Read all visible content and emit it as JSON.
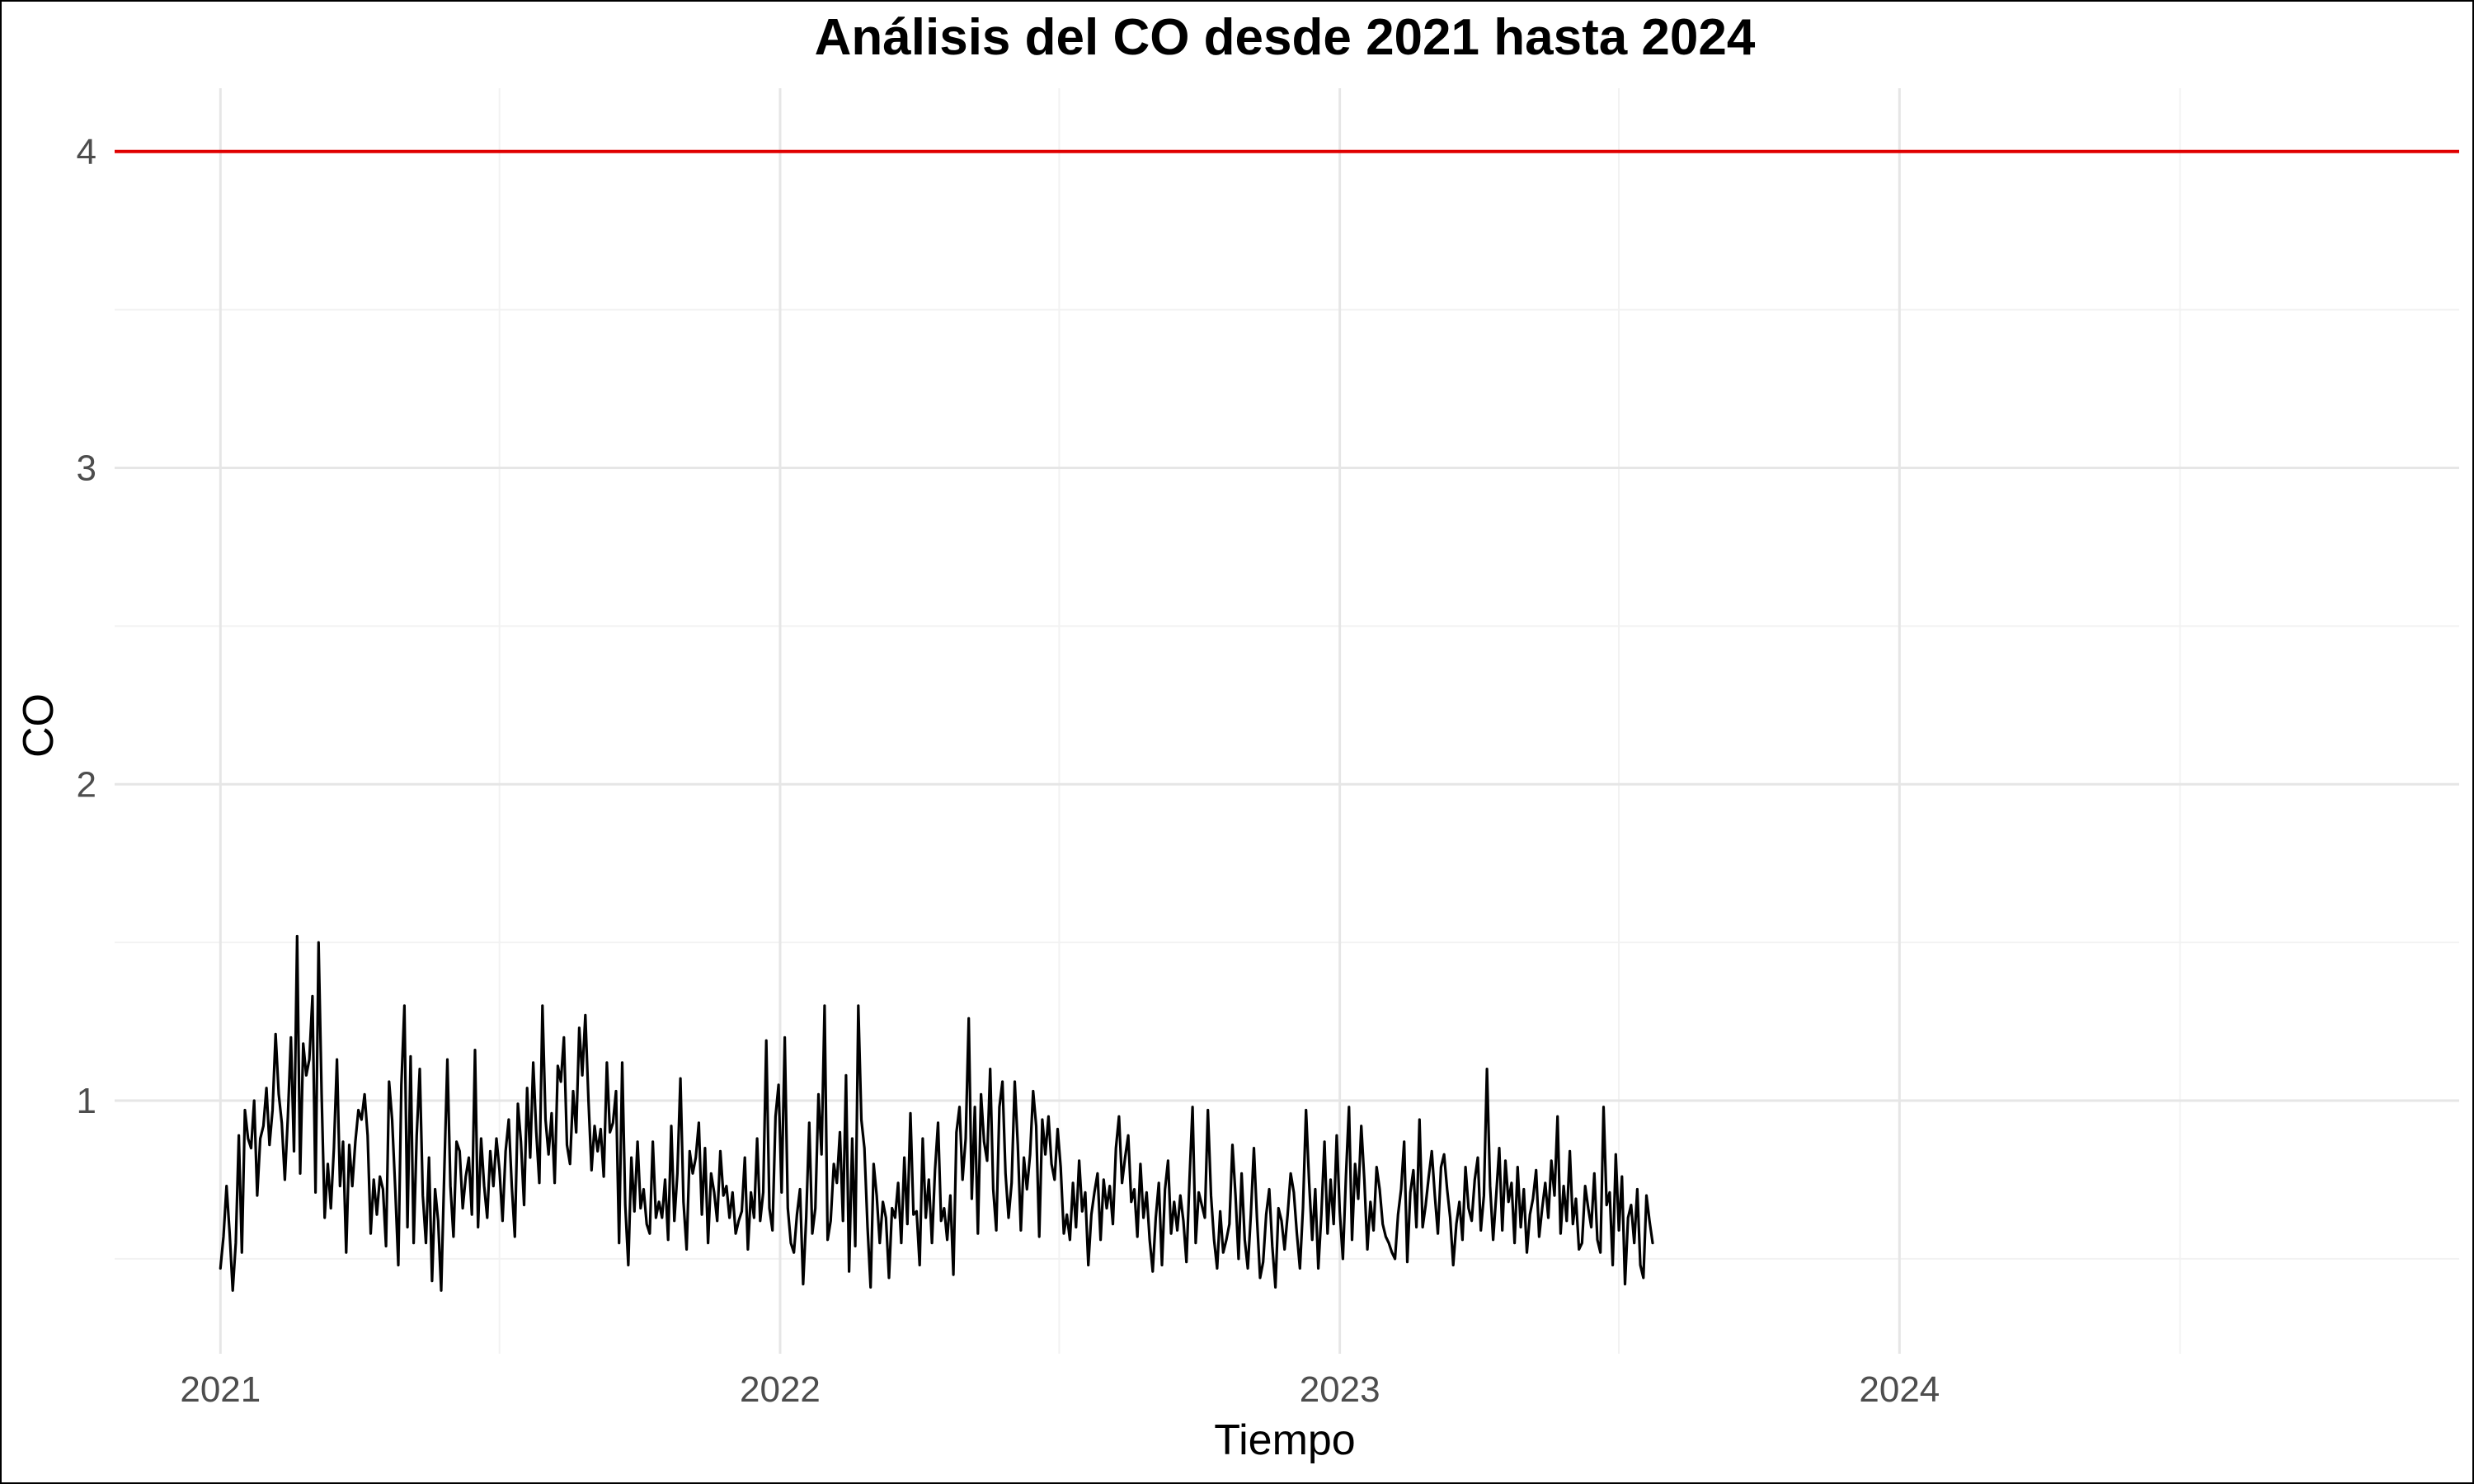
{
  "chart_data": {
    "type": "line",
    "title": "Análisis del CO desde 2021 hasta 2024",
    "xlabel": "Tiempo",
    "ylabel": "CO",
    "x_ticks": [
      "2021",
      "2022",
      "2023",
      "2024"
    ],
    "y_ticks": [
      1,
      2,
      3,
      4
    ],
    "xlim": [
      "2020-10-24",
      "2024-12-31"
    ],
    "ylim": [
      0.2,
      4.2
    ],
    "grid": true,
    "reference_line": {
      "y": 4,
      "color": "#e00000"
    },
    "series": [
      {
        "color": "#000000",
        "x_start": "2021-01-01",
        "x_step_days": 2,
        "values": [
          0.47,
          0.57,
          0.73,
          0.58,
          0.4,
          0.55,
          0.89,
          0.52,
          0.97,
          0.88,
          0.85,
          1.0,
          0.7,
          0.88,
          0.92,
          1.04,
          0.86,
          0.97,
          1.21,
          1.02,
          0.93,
          0.75,
          0.95,
          1.2,
          0.84,
          1.52,
          0.77,
          1.18,
          1.08,
          1.13,
          1.33,
          0.71,
          1.5,
          1.02,
          0.63,
          0.8,
          0.66,
          0.85,
          1.13,
          0.73,
          0.87,
          0.52,
          0.86,
          0.73,
          0.87,
          0.97,
          0.94,
          1.02,
          0.89,
          0.58,
          0.75,
          0.64,
          0.76,
          0.72,
          0.54,
          1.06,
          0.94,
          0.72,
          0.48,
          1.05,
          1.3,
          0.6,
          1.14,
          0.55,
          0.89,
          1.1,
          0.7,
          0.55,
          0.82,
          0.43,
          0.72,
          0.62,
          0.4,
          0.78,
          1.13,
          0.73,
          0.57,
          0.87,
          0.84,
          0.66,
          0.76,
          0.82,
          0.64,
          1.16,
          0.6,
          0.88,
          0.73,
          0.63,
          0.84,
          0.73,
          0.88,
          0.78,
          0.62,
          0.84,
          0.94,
          0.73,
          0.57,
          0.99,
          0.87,
          0.67,
          1.04,
          0.82,
          1.12,
          0.9,
          0.74,
          1.3,
          0.94,
          0.83,
          0.96,
          0.74,
          1.11,
          1.06,
          1.2,
          0.86,
          0.8,
          1.03,
          0.9,
          1.23,
          1.08,
          1.27,
          1.0,
          0.78,
          0.92,
          0.84,
          0.91,
          0.76,
          1.12,
          0.9,
          0.93,
          1.03,
          0.55,
          1.12,
          0.67,
          0.48,
          0.82,
          0.65,
          0.87,
          0.66,
          0.72,
          0.61,
          0.58,
          0.87,
          0.63,
          0.68,
          0.63,
          0.75,
          0.56,
          0.92,
          0.62,
          0.77,
          1.07,
          0.68,
          0.53,
          0.84,
          0.77,
          0.82,
          0.93,
          0.64,
          0.85,
          0.55,
          0.77,
          0.71,
          0.62,
          0.84,
          0.7,
          0.73,
          0.63,
          0.71,
          0.58,
          0.62,
          0.65,
          0.82,
          0.53,
          0.71,
          0.63,
          0.88,
          0.62,
          0.71,
          1.19,
          0.66,
          0.59,
          0.95,
          1.05,
          0.71,
          1.2,
          0.66,
          0.55,
          0.52,
          0.64,
          0.72,
          0.42,
          0.63,
          0.93,
          0.58,
          0.66,
          1.02,
          0.83,
          1.3,
          0.56,
          0.62,
          0.8,
          0.74,
          0.9,
          0.62,
          1.08,
          0.46,
          0.88,
          0.54,
          1.3,
          0.94,
          0.85,
          0.6,
          0.41,
          0.8,
          0.7,
          0.55,
          0.68,
          0.63,
          0.44,
          0.66,
          0.63,
          0.74,
          0.55,
          0.82,
          0.61,
          0.96,
          0.64,
          0.65,
          0.48,
          0.88,
          0.63,
          0.75,
          0.55,
          0.78,
          0.93,
          0.62,
          0.66,
          0.56,
          0.7,
          0.45,
          0.9,
          0.98,
          0.75,
          0.88,
          1.26,
          0.69,
          0.98,
          0.58,
          1.02,
          0.87,
          0.81,
          1.1,
          0.72,
          0.59,
          0.98,
          1.06,
          0.77,
          0.63,
          0.74,
          1.06,
          0.86,
          0.59,
          0.82,
          0.72,
          0.83,
          1.03,
          0.92,
          0.57,
          0.94,
          0.83,
          0.95,
          0.8,
          0.75,
          0.91,
          0.79,
          0.58,
          0.64,
          0.56,
          0.74,
          0.6,
          0.81,
          0.65,
          0.71,
          0.48,
          0.64,
          0.71,
          0.77,
          0.56,
          0.75,
          0.66,
          0.73,
          0.61,
          0.85,
          0.95,
          0.74,
          0.82,
          0.89,
          0.68,
          0.72,
          0.57,
          0.8,
          0.63,
          0.71,
          0.56,
          0.46,
          0.63,
          0.74,
          0.48,
          0.72,
          0.81,
          0.58,
          0.68,
          0.59,
          0.7,
          0.62,
          0.49,
          0.75,
          0.98,
          0.55,
          0.71,
          0.67,
          0.63,
          0.97,
          0.7,
          0.56,
          0.47,
          0.65,
          0.52,
          0.56,
          0.61,
          0.86,
          0.7,
          0.5,
          0.77,
          0.56,
          0.47,
          0.64,
          0.85,
          0.63,
          0.44,
          0.49,
          0.64,
          0.72,
          0.54,
          0.41,
          0.66,
          0.62,
          0.53,
          0.64,
          0.77,
          0.71,
          0.58,
          0.47,
          0.66,
          0.97,
          0.74,
          0.56,
          0.72,
          0.47,
          0.64,
          0.87,
          0.58,
          0.75,
          0.61,
          0.89,
          0.65,
          0.5,
          0.76,
          0.98,
          0.56,
          0.8,
          0.69,
          0.92,
          0.75,
          0.53,
          0.68,
          0.59,
          0.79,
          0.72,
          0.61,
          0.57,
          0.55,
          0.52,
          0.5,
          0.64,
          0.72,
          0.87,
          0.49,
          0.71,
          0.78,
          0.6,
          0.94,
          0.6,
          0.67,
          0.76,
          0.84,
          0.7,
          0.58,
          0.79,
          0.83,
          0.72,
          0.63,
          0.48,
          0.61,
          0.68,
          0.56,
          0.79,
          0.66,
          0.62,
          0.75,
          0.82,
          0.59,
          0.7,
          1.1,
          0.73,
          0.56,
          0.7,
          0.85,
          0.59,
          0.81,
          0.68,
          0.74,
          0.55,
          0.79,
          0.6,
          0.72,
          0.52,
          0.64,
          0.69,
          0.78,
          0.57,
          0.66,
          0.74,
          0.63,
          0.81,
          0.7,
          0.95,
          0.58,
          0.73,
          0.62,
          0.84,
          0.61,
          0.69,
          0.53,
          0.55,
          0.73,
          0.66,
          0.6,
          0.77,
          0.56,
          0.52,
          0.98,
          0.67,
          0.71,
          0.48,
          0.83,
          0.59,
          0.76,
          0.42,
          0.63,
          0.67,
          0.55,
          0.72,
          0.48,
          0.44,
          0.7,
          0.62,
          0.55
        ]
      }
    ]
  }
}
